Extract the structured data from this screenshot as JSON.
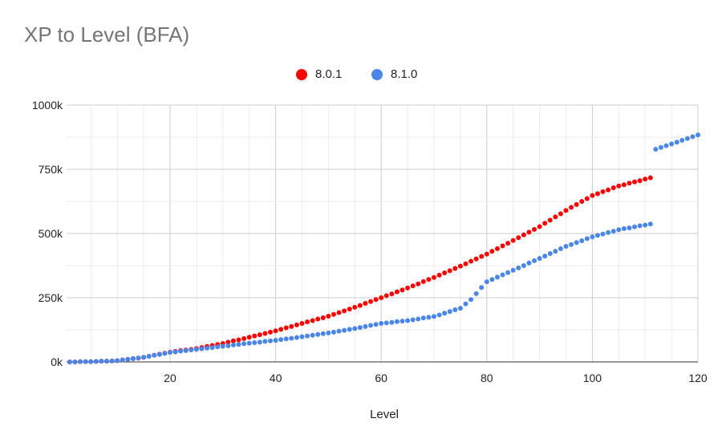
{
  "chart_data": {
    "type": "scatter",
    "title": "XP to Level (BFA)",
    "xlabel": "Level",
    "ylabel": "",
    "xlim": [
      0.4,
      120
    ],
    "ylim": [
      0,
      1000
    ],
    "y_unit": "k",
    "x_ticks": [
      20,
      40,
      60,
      80,
      100,
      120
    ],
    "x_tick_labels": [
      "20",
      "40",
      "60",
      "80",
      "100",
      "120"
    ],
    "y_ticks": [
      0,
      250,
      500,
      750,
      1000
    ],
    "y_tick_labels": [
      "0k",
      "250k",
      "500k",
      "750k",
      "1000k"
    ],
    "grid": true,
    "legend_position": "top",
    "series": [
      {
        "name": "8.0.1",
        "color": "#ff0000",
        "x_start": 1,
        "values": [
          0,
          0,
          1,
          1,
          1,
          2,
          3,
          3,
          4,
          5,
          8,
          10,
          13,
          15,
          18,
          22,
          26,
          30,
          34,
          38,
          41,
          44,
          46,
          49,
          52,
          56,
          60,
          64,
          68,
          72,
          77,
          82,
          86,
          91,
          96,
          101,
          106,
          111,
          116,
          121,
          127,
          133,
          138,
          144,
          150,
          156,
          161,
          167,
          172,
          178,
          185,
          192,
          199,
          206,
          213,
          220,
          228,
          235,
          243,
          250,
          258,
          265,
          273,
          280,
          288,
          296,
          304,
          313,
          321,
          329,
          338,
          347,
          355,
          364,
          373,
          382,
          392,
          401,
          411,
          420,
          431,
          441,
          452,
          462,
          473,
          484,
          495,
          505,
          516,
          527,
          540,
          552,
          565,
          577,
          590,
          602,
          613,
          625,
          636,
          648,
          655,
          663,
          670,
          678,
          685,
          690,
          696,
          701,
          706,
          712,
          717
        ]
      },
      {
        "name": "8.1.0",
        "color": "#4a86e8",
        "x_start": 1,
        "values": [
          0,
          0,
          1,
          1,
          1,
          2,
          3,
          3,
          4,
          5,
          8,
          10,
          13,
          15,
          18,
          22,
          26,
          29,
          33,
          37,
          39,
          42,
          44,
          47,
          49,
          51,
          54,
          56,
          59,
          61,
          63,
          66,
          68,
          71,
          73,
          75,
          77,
          80,
          82,
          84,
          87,
          90,
          92,
          95,
          98,
          101,
          104,
          107,
          110,
          113,
          116,
          120,
          123,
          127,
          130,
          134,
          138,
          142,
          146,
          150,
          152,
          154,
          157,
          159,
          161,
          164,
          167,
          171,
          174,
          177,
          183,
          190,
          196,
          203,
          209,
          226,
          243,
          266,
          290,
          312,
          321,
          330,
          339,
          348,
          357,
          366,
          375,
          385,
          394,
          403,
          412,
          422,
          431,
          441,
          450,
          457,
          465,
          472,
          480,
          487,
          493,
          498,
          504,
          509,
          515,
          519,
          522,
          526,
          530,
          533,
          537,
          828,
          835,
          842,
          849,
          856,
          863,
          870,
          877,
          884
        ]
      }
    ]
  }
}
